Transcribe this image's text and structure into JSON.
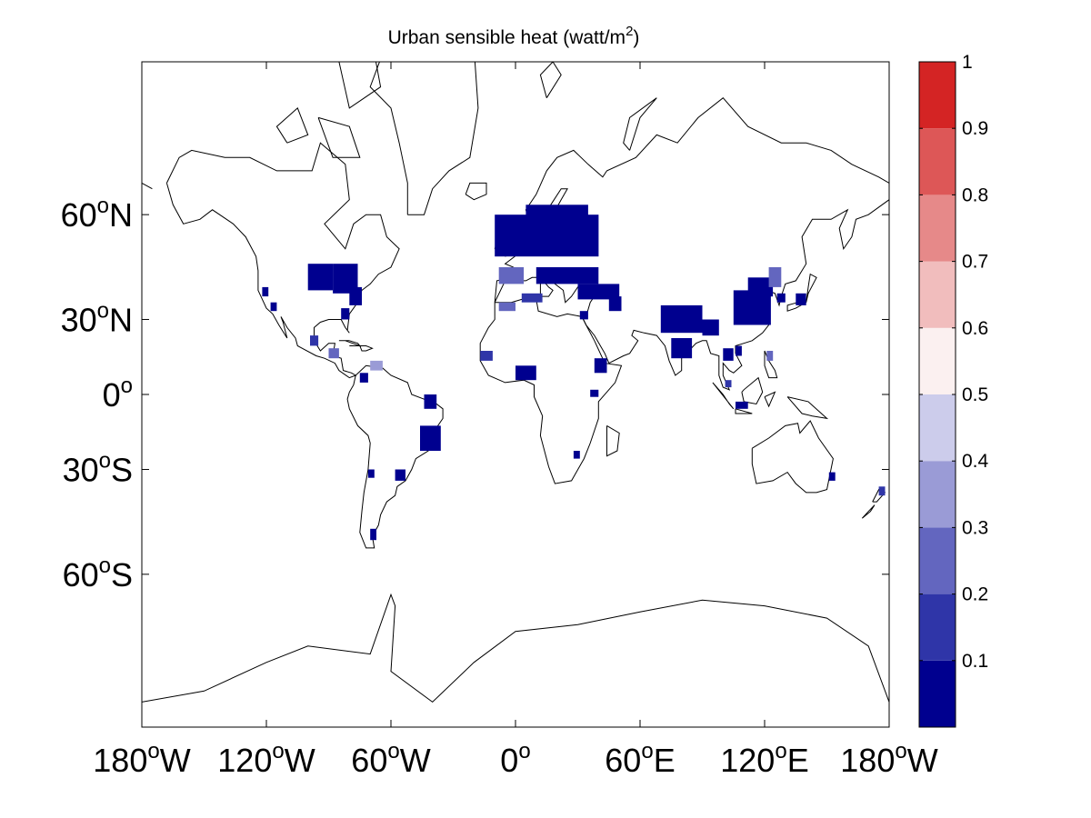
{
  "title": {
    "main": "Urban sensible heat (watt/m",
    "superscript": "2",
    "close": ")"
  },
  "map": {
    "projection": "mercator",
    "lon_range": [
      -180,
      180
    ],
    "lat_range": [
      -80,
      80
    ],
    "lat_ticks": [
      {
        "lat": 60,
        "deg": "60",
        "sup": "o",
        "hemi": "N"
      },
      {
        "lat": 30,
        "deg": "30",
        "sup": "o",
        "hemi": "N"
      },
      {
        "lat": 0,
        "deg": "0",
        "sup": "o",
        "hemi": ""
      },
      {
        "lat": -30,
        "deg": "30",
        "sup": "o",
        "hemi": "S"
      },
      {
        "lat": -60,
        "deg": "60",
        "sup": "o",
        "hemi": "S"
      }
    ],
    "lon_ticks": [
      {
        "lon": -180,
        "deg": "180",
        "sup": "o",
        "hemi": "W"
      },
      {
        "lon": -120,
        "deg": "120",
        "sup": "o",
        "hemi": "W"
      },
      {
        "lon": -60,
        "deg": "60",
        "sup": "o",
        "hemi": "W"
      },
      {
        "lon": 0,
        "deg": "0",
        "sup": "o",
        "hemi": ""
      },
      {
        "lon": 60,
        "deg": "60",
        "sup": "o",
        "hemi": "E"
      },
      {
        "lon": 120,
        "deg": "120",
        "sup": "o",
        "hemi": "E"
      },
      {
        "lon": 180,
        "deg": "180",
        "sup": "o",
        "hemi": "W"
      }
    ],
    "coastline_color": "#000000",
    "urban_cells": [
      {
        "lon": -100,
        "lat": 40,
        "w": 12,
        "h": 8,
        "v": 0.05
      },
      {
        "lon": -88,
        "lat": 39,
        "w": 12,
        "h": 9,
        "v": 0.05
      },
      {
        "lon": -80,
        "lat": 35,
        "w": 6,
        "h": 6,
        "v": 0.05
      },
      {
        "lon": -84,
        "lat": 30,
        "w": 4,
        "h": 4,
        "v": 0.05
      },
      {
        "lon": -122,
        "lat": 38,
        "w": 3,
        "h": 3,
        "v": 0.05
      },
      {
        "lon": -118,
        "lat": 33,
        "w": 3,
        "h": 3,
        "v": 0.05
      },
      {
        "lon": -99,
        "lat": 20,
        "w": 4,
        "h": 4,
        "v": 0.15
      },
      {
        "lon": -90,
        "lat": 15,
        "w": 5,
        "h": 4,
        "v": 0.25
      },
      {
        "lon": -70,
        "lat": 10,
        "w": 6,
        "h": 4,
        "v": 0.35
      },
      {
        "lon": -75,
        "lat": 5,
        "w": 4,
        "h": 4,
        "v": 0.05
      },
      {
        "lon": -44,
        "lat": -6,
        "w": 6,
        "h": 6,
        "v": 0.05
      },
      {
        "lon": -46,
        "lat": -23,
        "w": 10,
        "h": 10,
        "v": 0.05
      },
      {
        "lon": -58,
        "lat": -34,
        "w": 5,
        "h": 4,
        "v": 0.05
      },
      {
        "lon": -71,
        "lat": -33,
        "w": 3,
        "h": 3,
        "v": 0.05
      },
      {
        "lon": -70,
        "lat": -52,
        "w": 3,
        "h": 3,
        "v": 0.05
      },
      {
        "lon": -10,
        "lat": 50,
        "w": 50,
        "h": 10,
        "v": 0.05
      },
      {
        "lon": 5,
        "lat": 57,
        "w": 30,
        "h": 5,
        "v": 0.05
      },
      {
        "lon": -8,
        "lat": 42,
        "w": 12,
        "h": 5,
        "v": 0.25
      },
      {
        "lon": 10,
        "lat": 42,
        "w": 30,
        "h": 5,
        "v": 0.05
      },
      {
        "lon": 30,
        "lat": 37,
        "w": 20,
        "h": 5,
        "v": 0.05
      },
      {
        "lon": -8,
        "lat": 33,
        "w": 8,
        "h": 3,
        "v": 0.25
      },
      {
        "lon": 3,
        "lat": 36,
        "w": 10,
        "h": 3,
        "v": 0.15
      },
      {
        "lon": 31,
        "lat": 30,
        "w": 4,
        "h": 3,
        "v": 0.05
      },
      {
        "lon": -17,
        "lat": 14,
        "w": 6,
        "h": 4,
        "v": 0.15
      },
      {
        "lon": 0,
        "lat": 6,
        "w": 10,
        "h": 6,
        "v": 0.05
      },
      {
        "lon": 38,
        "lat": 9,
        "w": 6,
        "h": 6,
        "v": 0.05
      },
      {
        "lon": 36,
        "lat": -1,
        "w": 4,
        "h": 3,
        "v": 0.05
      },
      {
        "lon": 28,
        "lat": -26,
        "w": 3,
        "h": 3,
        "v": 0.05
      },
      {
        "lon": 45,
        "lat": 33,
        "w": 6,
        "h": 5,
        "v": 0.05
      },
      {
        "lon": 70,
        "lat": 25,
        "w": 20,
        "h": 10,
        "v": 0.05
      },
      {
        "lon": 75,
        "lat": 15,
        "w": 10,
        "h": 8,
        "v": 0.05
      },
      {
        "lon": 90,
        "lat": 24,
        "w": 8,
        "h": 6,
        "v": 0.05
      },
      {
        "lon": 105,
        "lat": 28,
        "w": 18,
        "h": 12,
        "v": 0.05
      },
      {
        "lon": 112,
        "lat": 38,
        "w": 12,
        "h": 6,
        "v": 0.05
      },
      {
        "lon": 122,
        "lat": 41,
        "w": 6,
        "h": 6,
        "v": 0.25
      },
      {
        "lon": 126,
        "lat": 36,
        "w": 4,
        "h": 3,
        "v": 0.05
      },
      {
        "lon": 135,
        "lat": 35,
        "w": 5,
        "h": 4,
        "v": 0.05
      },
      {
        "lon": 100,
        "lat": 14,
        "w": 5,
        "h": 5,
        "v": 0.05
      },
      {
        "lon": 106,
        "lat": 16,
        "w": 3,
        "h": 4,
        "v": 0.05
      },
      {
        "lon": 121,
        "lat": 14,
        "w": 3,
        "h": 4,
        "v": 0.25
      },
      {
        "lon": 101,
        "lat": 3,
        "w": 3,
        "h": 3,
        "v": 0.15
      },
      {
        "lon": 106,
        "lat": -6,
        "w": 6,
        "h": 3,
        "v": 0.05
      },
      {
        "lon": 151,
        "lat": -34,
        "w": 3,
        "h": 3,
        "v": 0.05
      },
      {
        "lon": 175,
        "lat": -39,
        "w": 3,
        "h": 3,
        "v": 0.15
      }
    ]
  },
  "colorbar": {
    "min": 0,
    "max": 1,
    "bins": [
      {
        "from": 0.0,
        "to": 0.1,
        "color": "#00008f"
      },
      {
        "from": 0.1,
        "to": 0.2,
        "color": "#2f35a8"
      },
      {
        "from": 0.2,
        "to": 0.3,
        "color": "#6366bf"
      },
      {
        "from": 0.3,
        "to": 0.4,
        "color": "#9a9bd6"
      },
      {
        "from": 0.4,
        "to": 0.5,
        "color": "#cccceb"
      },
      {
        "from": 0.5,
        "to": 0.6,
        "color": "#fbf0f0"
      },
      {
        "from": 0.6,
        "to": 0.7,
        "color": "#f1bdbd"
      },
      {
        "from": 0.7,
        "to": 0.8,
        "color": "#e68989"
      },
      {
        "from": 0.8,
        "to": 0.9,
        "color": "#dd5757"
      },
      {
        "from": 0.9,
        "to": 1.0,
        "color": "#d42424"
      }
    ],
    "tick_labels": [
      "0.1",
      "0.2",
      "0.3",
      "0.4",
      "0.5",
      "0.6",
      "0.7",
      "0.8",
      "0.9",
      "1"
    ]
  }
}
